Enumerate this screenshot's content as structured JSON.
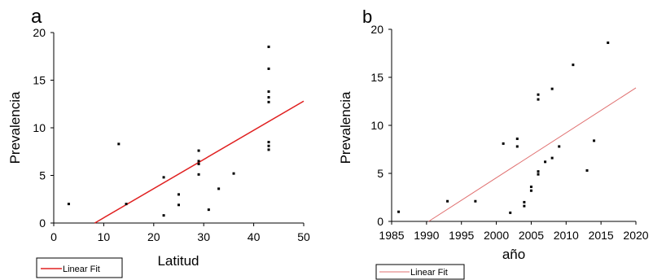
{
  "chart_data": [
    {
      "type": "scatter",
      "panel_label": "a",
      "xlabel": "Latitud",
      "ylabel": "Prevalencia",
      "xlim": [
        0,
        50
      ],
      "ylim": [
        0,
        20
      ],
      "xticks": [
        "0",
        "10",
        "20",
        "30",
        "40",
        "50"
      ],
      "yticks": [
        "0",
        "5",
        "10",
        "15",
        "20"
      ],
      "points": [
        {
          "x": 3,
          "y": 2.0
        },
        {
          "x": 13,
          "y": 8.3
        },
        {
          "x": 14.5,
          "y": 2.0
        },
        {
          "x": 22,
          "y": 4.8
        },
        {
          "x": 22,
          "y": 0.8
        },
        {
          "x": 25,
          "y": 3.0
        },
        {
          "x": 25,
          "y": 1.9
        },
        {
          "x": 29,
          "y": 7.6
        },
        {
          "x": 29,
          "y": 6.5
        },
        {
          "x": 29,
          "y": 6.2
        },
        {
          "x": 29,
          "y": 5.1
        },
        {
          "x": 31,
          "y": 1.4
        },
        {
          "x": 33,
          "y": 3.6
        },
        {
          "x": 36,
          "y": 5.2
        },
        {
          "x": 43,
          "y": 18.5
        },
        {
          "x": 43,
          "y": 16.2
        },
        {
          "x": 43,
          "y": 13.8
        },
        {
          "x": 43,
          "y": 13.2
        },
        {
          "x": 43,
          "y": 12.7
        },
        {
          "x": 43,
          "y": 8.5
        },
        {
          "x": 43,
          "y": 8.1
        },
        {
          "x": 43,
          "y": 7.7
        }
      ],
      "fit_line": {
        "x": [
          8.2,
          50
        ],
        "y": [
          0,
          12.8
        ]
      },
      "fit_color": "#e02020",
      "legend": {
        "label": "Linear Fit",
        "position": "below-left"
      }
    },
    {
      "type": "scatter",
      "panel_label": "b",
      "xlabel": "año",
      "ylabel": "Prevalencia",
      "xlim": [
        1985,
        2020
      ],
      "ylim": [
        0,
        20
      ],
      "xticks": [
        "1985",
        "1990",
        "1995",
        "2000",
        "2005",
        "2010",
        "2015",
        "2020"
      ],
      "yticks": [
        "0",
        "5",
        "10",
        "15",
        "20"
      ],
      "points": [
        {
          "x": 1986,
          "y": 1.0
        },
        {
          "x": 1993,
          "y": 2.1
        },
        {
          "x": 1997,
          "y": 2.1
        },
        {
          "x": 2001,
          "y": 8.1
        },
        {
          "x": 2002,
          "y": 0.9
        },
        {
          "x": 2003,
          "y": 8.6
        },
        {
          "x": 2003,
          "y": 7.8
        },
        {
          "x": 2004,
          "y": 2.0
        },
        {
          "x": 2004,
          "y": 1.6
        },
        {
          "x": 2005,
          "y": 3.6
        },
        {
          "x": 2005,
          "y": 3.2
        },
        {
          "x": 2006,
          "y": 13.2
        },
        {
          "x": 2006,
          "y": 12.7
        },
        {
          "x": 2006,
          "y": 5.2
        },
        {
          "x": 2006,
          "y": 4.9
        },
        {
          "x": 2007,
          "y": 6.2
        },
        {
          "x": 2008,
          "y": 13.8
        },
        {
          "x": 2008,
          "y": 6.6
        },
        {
          "x": 2009,
          "y": 7.8
        },
        {
          "x": 2011,
          "y": 16.3
        },
        {
          "x": 2013,
          "y": 5.3
        },
        {
          "x": 2014,
          "y": 8.4
        },
        {
          "x": 2016,
          "y": 18.6
        }
      ],
      "fit_line": {
        "x": [
          1990.3,
          2020
        ],
        "y": [
          0,
          13.9
        ]
      },
      "fit_color": "#e07070",
      "legend": {
        "label": "Linear Fit",
        "position": "below-left"
      }
    }
  ]
}
